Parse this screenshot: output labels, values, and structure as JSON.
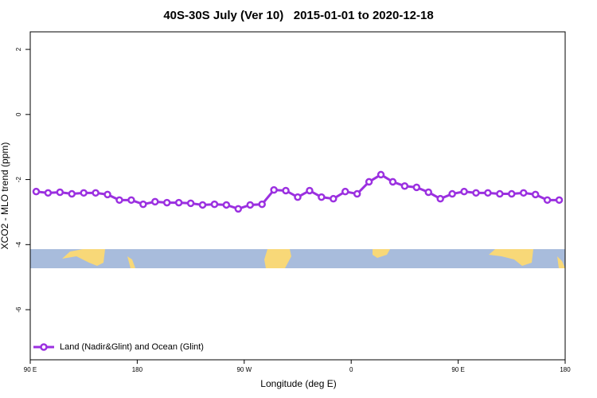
{
  "chart_data": {
    "type": "line",
    "title": "40S-30S July (Ver 10)   2015-01-01 to 2020-12-18",
    "x_label": "Longitude (deg E)",
    "y_label": "XCO2 - MLO trend (ppm)",
    "x": [
      95,
      105,
      115,
      125,
      135,
      145,
      155,
      165,
      175,
      185,
      195,
      205,
      215,
      225,
      235,
      245,
      255,
      265,
      275,
      285,
      295,
      305,
      315,
      325,
      335,
      345,
      355,
      365,
      375,
      385,
      395,
      405,
      415,
      425,
      435,
      445,
      455,
      465,
      475,
      485,
      495,
      505,
      515,
      525,
      535
    ],
    "series": [
      {
        "name": "Land (Nadir&Glint) and Ocean (Glint)",
        "color": "#9b30e0",
        "values": [
          -2.37,
          -2.41,
          -2.39,
          -2.44,
          -2.41,
          -2.41,
          -2.46,
          -2.63,
          -2.63,
          -2.76,
          -2.68,
          -2.71,
          -2.71,
          -2.73,
          -2.78,
          -2.76,
          -2.78,
          -2.9,
          -2.78,
          -2.76,
          -2.32,
          -2.34,
          -2.54,
          -2.34,
          -2.54,
          -2.59,
          -2.37,
          -2.44,
          -2.07,
          -1.85,
          -2.07,
          -2.2,
          -2.24,
          -2.39,
          -2.59,
          -2.44,
          -2.37,
          -2.41,
          -2.41,
          -2.44,
          -2.44,
          -2.41,
          -2.46,
          -2.63,
          -2.63
        ]
      }
    ],
    "xlim": [
      90,
      540
    ],
    "xticks": [
      {
        "value": 90,
        "label": "90 E"
      },
      180,
      {
        "value": 270,
        "label": "90 W"
      },
      {
        "value": 360,
        "label": "0"
      },
      {
        "value": 450,
        "label": "90 E"
      },
      {
        "value": 540,
        "label": "180"
      }
    ],
    "ylim": [
      -7.54,
      2.54
    ],
    "yticks": [
      -6,
      -4,
      -2,
      0,
      2
    ],
    "legend": "bottom-left"
  }
}
